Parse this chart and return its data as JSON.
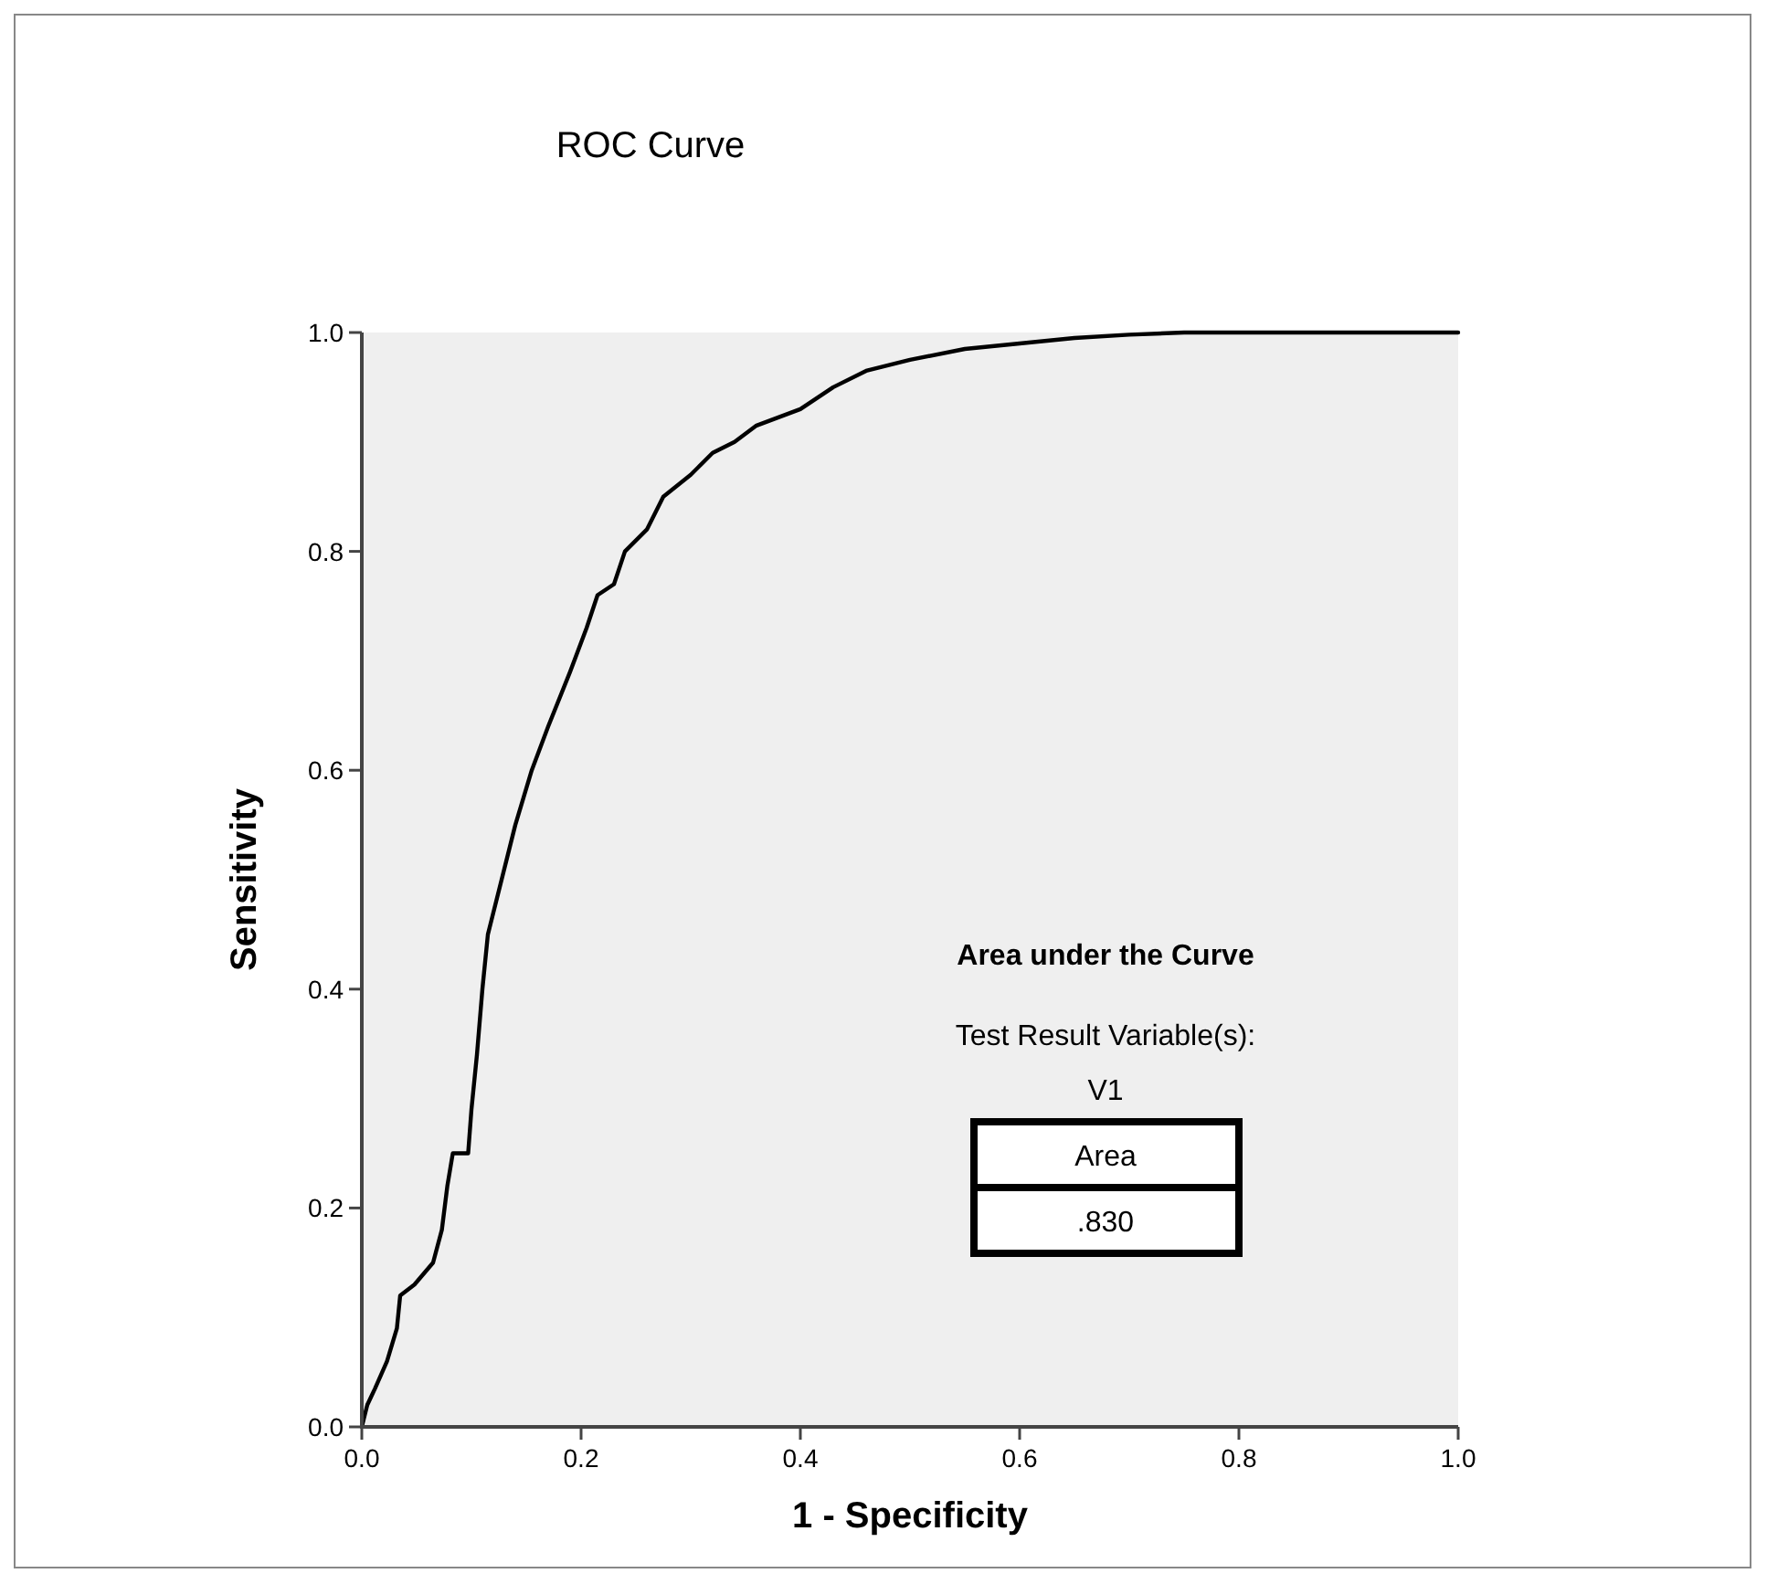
{
  "chart_data": {
    "type": "line",
    "title": "ROC Curve",
    "xlabel": "1 - Specificity",
    "ylabel": "Sensitivity",
    "annotations": [
      "Area under the Curve",
      "Test Result Variable(s):",
      "V1",
      "Area",
      ".830"
    ],
    "xlim": [
      0,
      1
    ],
    "ylim": [
      0,
      1
    ],
    "xticks": [
      {
        "value": 0,
        "label": "0.0"
      },
      {
        "value": 0.2,
        "label": "0.2"
      },
      {
        "value": 0.4,
        "label": "0.4"
      },
      {
        "value": 0.6,
        "label": "0.6"
      },
      {
        "value": 0.8,
        "label": "0.8"
      },
      {
        "value": 1,
        "label": "1.0"
      }
    ],
    "yticks": [
      {
        "value": 0,
        "label": "0.0"
      },
      {
        "value": 0.2,
        "label": "0.2"
      },
      {
        "value": 0.4,
        "label": "0.4"
      },
      {
        "value": 0.6,
        "label": "0.6"
      },
      {
        "value": 0.8,
        "label": "0.8"
      },
      {
        "value": 1,
        "label": "1.0"
      }
    ],
    "grid": false,
    "marker": "none",
    "line_style": "solid",
    "series": [
      {
        "color": "#000000",
        "x": [
          0,
          0.005,
          0.012,
          0.023,
          0.032,
          0.035,
          0.048,
          0.065,
          0.073,
          0.078,
          0.083,
          0.097,
          0.1,
          0.105,
          0.11,
          0.115,
          0.125,
          0.14,
          0.155,
          0.17,
          0.19,
          0.205,
          0.215,
          0.23,
          0.24,
          0.26,
          0.275,
          0.3,
          0.32,
          0.34,
          0.36,
          0.4,
          0.43,
          0.46,
          0.5,
          0.55,
          0.6,
          0.65,
          0.7,
          0.75,
          0.8,
          1.0
        ],
        "values": [
          0,
          0.02,
          0.035,
          0.06,
          0.09,
          0.12,
          0.13,
          0.15,
          0.18,
          0.22,
          0.25,
          0.25,
          0.29,
          0.34,
          0.4,
          0.45,
          0.49,
          0.55,
          0.6,
          0.64,
          0.69,
          0.73,
          0.76,
          0.77,
          0.8,
          0.82,
          0.85,
          0.87,
          0.89,
          0.9,
          0.915,
          0.93,
          0.95,
          0.965,
          0.975,
          0.985,
          0.99,
          0.995,
          0.998,
          1.0,
          1.0,
          1.0
        ]
      }
    ]
  }
}
